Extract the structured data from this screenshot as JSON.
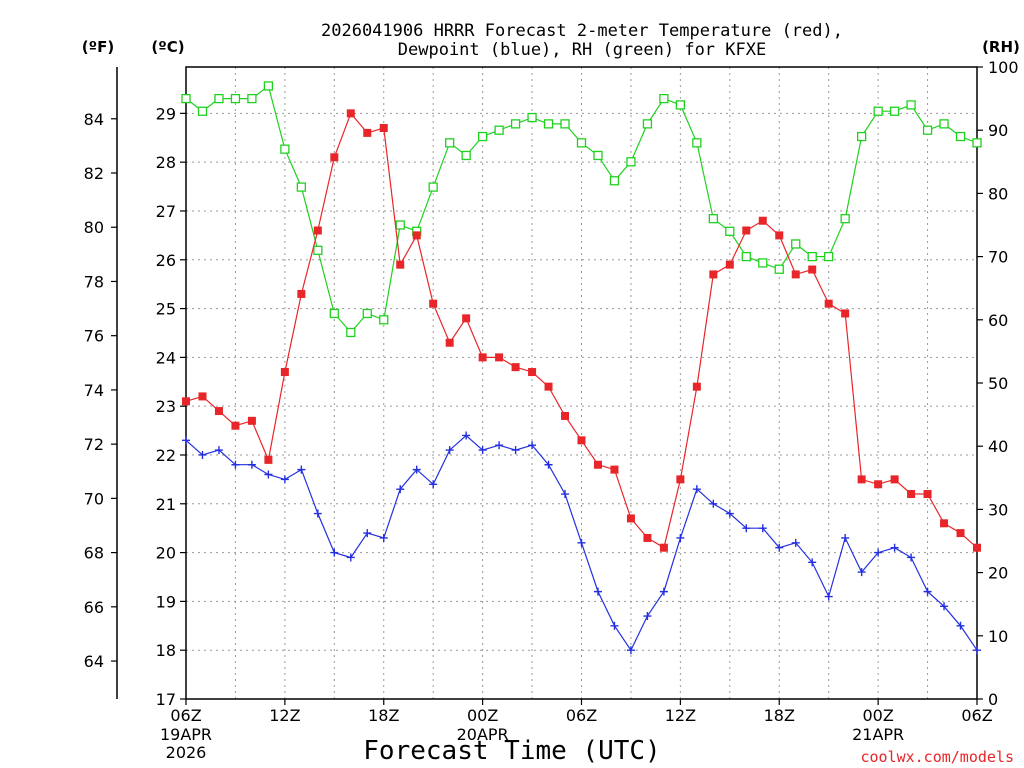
{
  "chart_data": {
    "type": "line",
    "title_lines": [
      "2026041906 HRRR Forecast 2-meter Temperature (red),",
      "Dewpoint (blue), RH (green) for KFXE"
    ],
    "xlabel": "Forecast Time (UTC)",
    "credit": "coolwx.com/models",
    "axes": {
      "left_f": {
        "label": "(ºF)",
        "ticks": [
          "64",
          "66",
          "68",
          "70",
          "72",
          "74",
          "76",
          "78",
          "80",
          "82",
          "84"
        ]
      },
      "left_c": {
        "label": "(ºC)",
        "ticks": [
          "17",
          "18",
          "19",
          "20",
          "21",
          "22",
          "23",
          "24",
          "25",
          "26",
          "27",
          "28",
          "29"
        ],
        "range": [
          17,
          29.95
        ]
      },
      "right_rh": {
        "label": "(RH)",
        "ticks": [
          "0",
          "10",
          "20",
          "30",
          "40",
          "50",
          "60",
          "70",
          "80",
          "90",
          "100"
        ],
        "range": [
          0,
          100
        ]
      }
    },
    "x_ticks": [
      {
        "h": 0,
        "label": "06Z",
        "sub": [
          "19APR",
          "2026"
        ]
      },
      {
        "h": 6,
        "label": "12Z",
        "sub": []
      },
      {
        "h": 12,
        "label": "18Z",
        "sub": []
      },
      {
        "h": 18,
        "label": "00Z",
        "sub": [
          "20APR"
        ]
      },
      {
        "h": 24,
        "label": "06Z",
        "sub": []
      },
      {
        "h": 30,
        "label": "12Z",
        "sub": []
      },
      {
        "h": 36,
        "label": "18Z",
        "sub": []
      },
      {
        "h": 42,
        "label": "00Z",
        "sub": [
          "21APR"
        ]
      },
      {
        "h": 48,
        "label": "06Z",
        "sub": []
      }
    ],
    "x_hours": [
      0,
      1,
      2,
      3,
      4,
      5,
      6,
      7,
      8,
      9,
      10,
      11,
      12,
      13,
      14,
      15,
      16,
      17,
      18,
      19,
      20,
      21,
      22,
      23,
      24,
      25,
      26,
      27,
      28,
      29,
      30,
      31,
      32,
      33,
      34,
      35,
      36,
      37,
      38,
      39,
      40,
      41,
      42,
      43,
      44,
      45,
      46,
      47,
      48
    ],
    "series": [
      {
        "name": "Temperature",
        "axis": "celsius",
        "color": "#e8262a",
        "marker": "filled-square",
        "values": [
          23.1,
          23.2,
          22.9,
          22.6,
          22.7,
          21.9,
          23.7,
          25.3,
          26.6,
          28.1,
          29.0,
          28.6,
          28.7,
          25.9,
          26.5,
          25.1,
          24.3,
          24.8,
          24.0,
          24.0,
          23.8,
          23.7,
          23.4,
          22.8,
          22.3,
          21.8,
          21.7,
          20.7,
          20.3,
          20.1,
          21.5,
          23.4,
          25.7,
          25.9,
          26.6,
          26.8,
          26.5,
          25.7,
          25.8,
          25.1,
          24.9,
          21.5,
          21.4,
          21.5,
          21.2,
          21.2,
          20.6,
          20.4,
          20.1
        ]
      },
      {
        "name": "Dewpoint",
        "axis": "celsius",
        "color": "#2430e0",
        "marker": "plus",
        "values": [
          22.3,
          22.0,
          22.1,
          21.8,
          21.8,
          21.6,
          21.5,
          21.7,
          20.8,
          20.0,
          19.9,
          20.4,
          20.3,
          21.3,
          21.7,
          21.4,
          22.1,
          22.4,
          22.1,
          22.2,
          22.1,
          22.2,
          21.8,
          21.2,
          20.2,
          19.2,
          18.5,
          18.0,
          18.7,
          19.2,
          20.3,
          21.3,
          21.0,
          20.8,
          20.5,
          20.5,
          20.1,
          20.2,
          19.8,
          19.1,
          20.3,
          19.6,
          20.0,
          20.1,
          19.9,
          19.2,
          18.9,
          18.5,
          18.0
        ]
      },
      {
        "name": "RH",
        "axis": "rh",
        "color": "#1fd11f",
        "marker": "open-square",
        "values": [
          95,
          93,
          95,
          95,
          95,
          97,
          87,
          81,
          71,
          61,
          58,
          61,
          60,
          75,
          74,
          81,
          88,
          86,
          89,
          90,
          91,
          92,
          91,
          91,
          88,
          86,
          82,
          85,
          91,
          95,
          94,
          88,
          76,
          74,
          70,
          69,
          68,
          72,
          70,
          70,
          76,
          89,
          93,
          93,
          94,
          90,
          91,
          89,
          88
        ]
      }
    ]
  }
}
